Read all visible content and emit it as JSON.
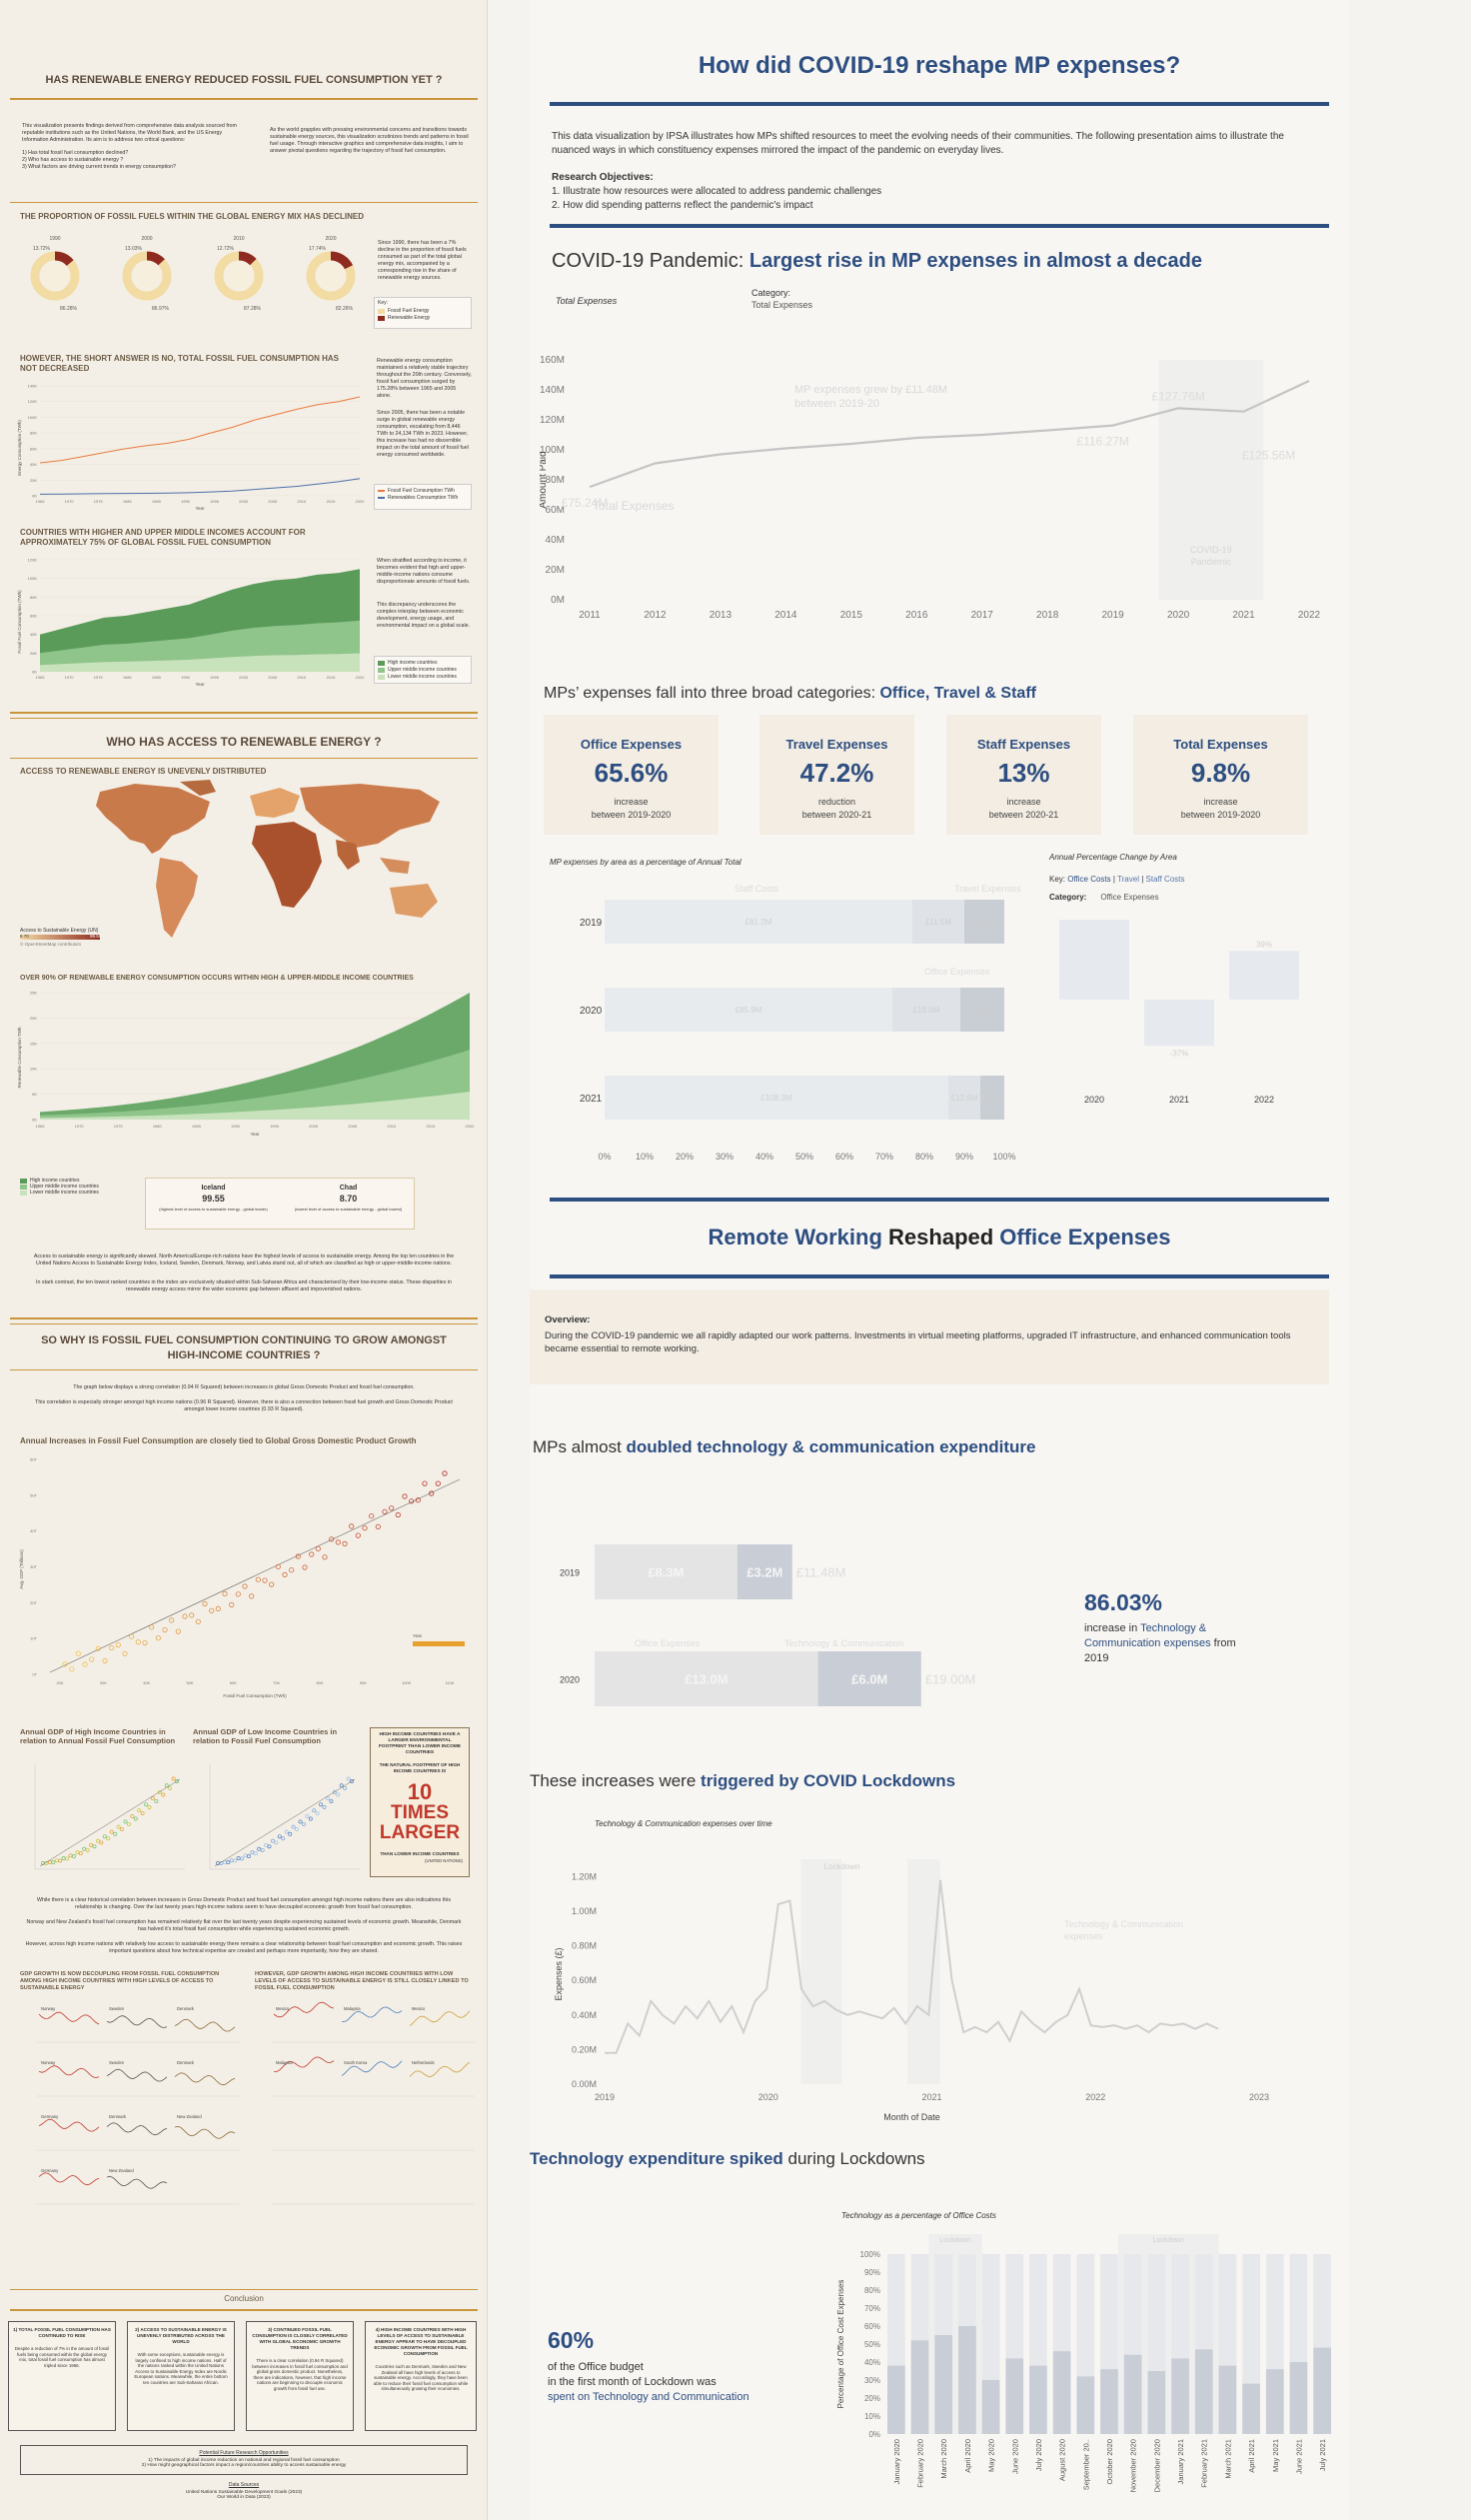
{
  "left": {
    "title1": "HAS RENEWABLE ENERGY REDUCED FOSSIL FUEL CONSUMPTION YET ?",
    "intro_left": "This visualization presents findings derived from comprehensive data analysis sourced from reputable institutions such as the United Nations, the World Bank, and the US Energy Information Administration. Its aim is to address two critical questions:",
    "intro_q1": "1) Has total fossil fuel consumption declined?",
    "intro_q2": "2) Who has access to sustainable energy ?",
    "intro_q3": "3) What factors are driving current trends in energy consumption?",
    "intro_right": "As the world grapples with pressing environmental concerns and transitions towards sustainable energy sources, this visualization scrutinizes trends and patterns in fossil fuel usage. Through interactive graphics and comprehensive data insights, I aim to answer pivotal questions regarding the trajectory of fossil fuel consumption.",
    "sec1": "THE PROPORTION OF FOSSIL FUELS WITHIN THE GLOBAL ENERGY MIX HAS DECLINED",
    "donuts": [
      {
        "year": "1990",
        "fossil": "86.28%",
        "renew": "13.72%",
        "renew_frac": 0.1372
      },
      {
        "year": "2000",
        "fossil": "86.97%",
        "renew": "13.03%",
        "renew_frac": 0.1303
      },
      {
        "year": "2010",
        "fossil": "87.28%",
        "renew": "12.72%",
        "renew_frac": 0.1272
      },
      {
        "year": "2020",
        "fossil": "82.26%",
        "renew": "17.74%",
        "renew_frac": 0.1774
      }
    ],
    "donut_note": "Since 1990, there has been a 7% decline in the proportion of fossil fuels consumed as part of the total global energy mix, accompanied by a corresponding rise in the share of renewable energy sources.",
    "donut_key": "Key:",
    "donut_legend": [
      "Fossil Fuel Energy",
      "Renewable Energy"
    ],
    "sec2": "HOWEVER, THE SHORT ANSWER IS NO, TOTAL FOSSIL FUEL CONSUMPTION HAS NOT DECREASED",
    "line_note1": "Renewable energy consumption maintained a relatively stable trajectory throughout the 20th century. Conversely, fossil fuel consumption surged by 175.28% between 1965 and 2005 alone.",
    "line_note2": "Since 2005, there has been a notable surge in global renewable energy consumption, escalating from 8,446 TWh to 24,134 TWh in 2023. However, this increase has had no discernible impact on the total amount of fossil fuel energy consumed worldwide.",
    "line_legend": [
      "Fossil Fuel Consumption TWh",
      "Renewables Consumption TWh"
    ],
    "line_xlabel": "Year",
    "line_ylabel": "Energy Consumption (TWh)",
    "sec3": "COUNTRIES WITH HIGHER AND UPPER MIDDLE INCOMES ACCOUNT FOR APPROXIMATELY 75% OF GLOBAL FOSSIL FUEL CONSUMPTION",
    "area_note1": "When stratified according to income, it becomes evident that high and upper-middle-income nations consume disproportionate amounts of fossil fuels.",
    "area_note2": "This discrepancy underscores the complex interplay between economic development, energy usage, and environmental impact on a global scale.",
    "area_legend": [
      "High income countries",
      "Upper middle income countries",
      "Lower middle income countries"
    ],
    "area_ylabel": "Fossil Fuel Consumption (TWh)",
    "title2": "WHO HAS ACCESS TO RENEWABLE ENERGY ?",
    "sec4": "ACCESS TO RENEWABLE ENERGY IS UNEVENLY DISTRIBUTED",
    "map_legend": "Access to Sustainable Energy (UN)",
    "map_min": "8.70",
    "map_max": "99.55",
    "map_note": "© OpenStreetMap contributors",
    "sec5": "OVER 90% OF RENEWABLE ENERGY CONSUMPTION OCCURS WITHIN HIGH & UPPER-MIDDLE INCOME COUNTRIES",
    "area2_ylabel": "Renewable Consumption TWh",
    "area2_legend": [
      "High income countries",
      "Upper middle income countries",
      "Lower middle income countries"
    ],
    "iceland": {
      "name": "Iceland",
      "val": "99.55",
      "desc": "(highest level of access to sustainable energy - global leader)"
    },
    "chad": {
      "name": "Chad",
      "val": "8.70",
      "desc": "(lowest level of access to sustainable energy - global lowest)"
    },
    "access_note1": "Access to sustainable energy is significantly skewed. North America/Europe-rich nations have the highest levels of access to sustainable energy. Among the top ten countries in the United Nations Access to Sustainable Energy Index, Iceland, Sweden, Denmark, Norway, and Latvia stand out, all of which are classified as high or upper-middle-income nations.",
    "access_note2": "In stark contrast, the ten lowest ranked countries in the index are exclusively situated within Sub-Saharan Africa and characterised by their low-income status. These disparities in renewable energy access mirror the wider economic gap between affluent and impoverished nations.",
    "title3": "SO WHY IS FOSSIL FUEL CONSUMPTION CONTINUING TO GROW AMONGST HIGH-INCOME COUNTRIES ?",
    "corr_note1": "The graph below displays a strong correlation (0.94 R Squared) between increases in global Gross Domestic Product and fossil fuel consumption.",
    "corr_note2": "This correlation is especially stronger amongst high income nations (0.96 R Squared). However, there is also a connection between fossil fuel growth and Gross Domestic Product amongst lower income countries (0.93 R Squared).",
    "sec6": "Annual Increases in Fossil Fuel Consumption are closely tied to Global Gross Domestic Product Growth",
    "scatter_xlabel": "Fossil Fuel Consumption (TWh)",
    "scatter_ylabel": "Avg. GDP (Trillions)",
    "scatter_legend": "Year",
    "sec7a": "Annual GDP of High Income Countries in relation to Annual Fossil Fuel Consumption",
    "sec7b": "Annual GDP of Low Income Countries in relation to Fossil Fuel Consumption",
    "ft_head": "HIGH INCOME COUNTRIES HAVE A LARGER ENVIRONMENTAL FOOTPRINT THAN LOWER INCOME COUNTRIES",
    "ft_sub": "THE NATURAL FOOTPRINT OF HIGH INCOME COUNTRIES IS",
    "ft_big1": "10",
    "ft_big2": "TIMES",
    "ft_big3": "LARGER",
    "ft_tail": "THAN LOWER INCOME COUNTRIES",
    "ft_src": "(UNITED NATIONS)",
    "mid_note1": "While there is a clear historical correlation between increases in Gross Domestic Product and fossil fuel consumption amongst high income nations there are also indications this relationship is changing. Over the last twenty years high-income nations seem to have decoupled economic growth from fossil fuel consumption.",
    "mid_note2": "Norway and New Zealand's fossil fuel consumption has remained relatively flat over the last twenty years despite experiencing sustained levels of economic growth. Meanwhile, Denmark has halved it's total fossil fuel consumption while experiencing sustained economic growth.",
    "mid_note3": "However, across high income nations with relatively low access to sustainable energy there remains a clear relationship between fossil fuel consumption and economic growth. This raises important questions about how technical expertise are created and perhaps more importantly, how they are shared.",
    "sec8a": "GDP GROWTH IS NOW DECOUPLING FROM FOSSIL FUEL CONSUMPTION AMONG HIGH INCOME COUNTRIES WITH HIGH LEVELS OF ACCESS TO SUSTAINABLE ENERGY",
    "sec8b": "HOWEVER, GDP GROWTH AMONG HIGH INCOME COUNTRIES WITH LOW LEVELS OF ACCESS TO SUSTAINABLE ENERGY IS STILL CLOSELY LINKED TO FOSSIL FUEL CONSUMPTION",
    "small_labels_a": [
      "Norway",
      "Sweden",
      "Denmark",
      "Norway",
      "Sweden",
      "Denmark",
      "Germany",
      "Denmark",
      "New Zealand",
      "Germany",
      "New Zealand"
    ],
    "small_labels_b": [
      "Mexico",
      "Malaysia",
      "Mexico",
      "Malaysia",
      "South Korea",
      "Netherlands"
    ],
    "conclusion": "Conclusion",
    "concl": [
      {
        "head": "1) TOTAL FOSSIL FUEL CONSUMPTION HAS CONTINUED TO RISE",
        "body": "Despite a reduction of 7% in the amount of fossil fuels being consumed within the global energy mix, total fossil fuel consumption has almost tripled since 1965."
      },
      {
        "head": "2) ACCESS TO SUSTAINABLE ENERGY IS UNEVENLY DISTRIBUTED ACROSS THE WORLD",
        "body": "With some exceptions, sustainable energy is largely confined to high income nations. Half of the nations ranked within the United Nations Access to Sustainable Energy Index are Nordic European nations. Meanwhile, the entire bottom ten countries are Sub-Saharan African."
      },
      {
        "head": "3) CONTINUED FOSSIL FUEL CONSUMPTION IS CLOSELY CORRELATED WITH GLOBAL ECONOMIC GROWTH TRENDS",
        "body": "There is a clear correlation (0.94 R Squared) between increases in fossil fuel consumption and global gross domestic product. Nonetheless, there are indications, however, that high income nations are beginning to decouple economic growth from fossil fuel use."
      },
      {
        "head": "4) HIGH INCOME COUNTRIES WITH HIGH LEVELS OF ACCESS TO SUSTAINABLE ENERGY APPEAR TO HAVE DECOUPLED ECONOMIC GROWTH FROM FOSSIL FUEL CONSUMPTION",
        "body": "Countries such as Denmark, Sweden and New Zealand all have high levels of access to sustainable energy. Accordingly, they have been able to reduce their fossil fuel consumption while simultaneously growing their economies."
      }
    ],
    "future_head": "Potential Future Research Opportunities",
    "future_1": "1) The impacts of global income reduction on national and regional fossil fuel consumption",
    "future_2": "2) How might geographical factors impact a region/countries ability to access sustainable energy",
    "sources_head": "Data Sources",
    "sources_1": "United Nations Sustainable Development Goals (2023)",
    "sources_2": "Our World in Data (2023)"
  },
  "right": {
    "title": "How did COVID-19 reshape MP expenses?",
    "intro": "This data visualization by IPSA illustrates how MPs shifted resources to meet the evolving needs of their communities. The following presentation aims to illustrate the nuanced ways in which constituency expenses mirrored the impact of the pandemic on everyday lives.",
    "obj_head": "Research Objectives:",
    "obj1": "1. Illustrate how resources were allocated to address pandemic challenges",
    "obj2": "2. How did spending patterns reflect the pandemic's impact",
    "h1a": "COVID-19 Pandemic: ",
    "h1b": "Largest rise in MP expenses in almost a decade",
    "total_exp_label": "Total Expenses",
    "category_label": "Category:",
    "category_value": "Total Expenses",
    "ann_grew": "MP expenses grew by £11.48M",
    "ann_between": "between 2019-20",
    "ann_total": "Total Expenses",
    "ann_covid1": "COVID-19",
    "ann_covid2": "Pandemic",
    "h2a": "MPs’ expenses fall into three broad categories: ",
    "h2b": "Office, Travel & Staff",
    "kpis": [
      {
        "title": "Office Expenses",
        "value": "65.6%",
        "s1": "increase",
        "s2": "between 2019-2020"
      },
      {
        "title": "Travel Expenses",
        "value": "47.2%",
        "s1": "reduction",
        "s2": "between 2020-21"
      },
      {
        "title": "Staff Expenses",
        "value": "13%",
        "s1": "increase",
        "s2": "between 2020-21"
      },
      {
        "title": "Total Expenses",
        "value": "9.8%",
        "s1": "increase",
        "s2": "between 2019-2020"
      }
    ],
    "stack_title": "MP expenses by area as a percentage of Annual Total",
    "stack_lbl_staff": "Staff Costs",
    "stack_lbl_travel": "Travel Expenses",
    "stack_lbl_office": "Office Expenses",
    "apc_title": "Annual Percentage Change by Area",
    "apc_key": "Key: ",
    "apc_key_office": "Office Costs",
    "apc_key_sep1": " | ",
    "apc_key_travel": "Travel",
    "apc_key_sep2": " | ",
    "apc_key_staff": "Staff Costs",
    "apc_cat_label": "Category:",
    "apc_cat_value": "Office Expenses",
    "h3a": "Remote Working ",
    "h3b": "Reshaped ",
    "h3c": "Office Expenses",
    "overview_head": "Overview:",
    "overview_body": "During the COVID-19 pandemic we all rapidly adapted our work patterns. Investments in virtual meeting platforms, upgraded IT infrastructure, and enhanced communication tools became essential to remote working.",
    "h4a": "MPs almost ",
    "h4b": "doubled technology & communication expenditure",
    "tech_lbl_office": "Office Expenses",
    "tech_lbl_tech": "Technology & Communication",
    "stat1_value": "86.03%",
    "stat1_a": "increase in ",
    "stat1_b": "Technology & Communication",
    "stat1_c": "expenses",
    "stat1_d": " from 2019",
    "h5a": "These increases were ",
    "h5b": "triggered by COVID Lockdowns",
    "tc_title": "Technology & Communication expenses over time",
    "tc_ylabel": "Expenses (£)",
    "tc_xlabel": "Month of Date",
    "tc_lockdown": "Lockdown",
    "tc_series_label1": "Technology & Communication",
    "tc_series_label2": "expenses",
    "h6a": "Technology expenditure spiked",
    "h6b": " during Lockdowns",
    "pct_title": "Technology as a percentage of Office Costs",
    "pct_ylabel": "Percentage of Office Cost Expenses",
    "pct_lockdown": "Lockdown",
    "stat2_value": "60%",
    "stat2_a": "of the Office budget",
    "stat2_b": " in the first month of Lockdown was",
    "stat2_c": "spent on Technology and Communication"
  },
  "chart_data": [
    {
      "type": "line",
      "title": "Total Expenses",
      "ylabel": "Amount Paid",
      "x": [
        2011,
        2012,
        2013,
        2014,
        2015,
        2016,
        2017,
        2018,
        2019,
        2020,
        2021,
        2022
      ],
      "series": [
        {
          "name": "Total Expenses",
          "values": [
            75.24,
            91,
            97,
            101,
            104,
            108,
            110,
            113,
            116.27,
            127.76,
            125.56,
            146
          ]
        }
      ],
      "ylim": [
        0,
        160
      ],
      "yticks": [
        "0M",
        "20M",
        "40M",
        "60M",
        "80M",
        "100M",
        "120M",
        "140M",
        "160M"
      ],
      "data_labels": [
        {
          "x": 2011,
          "label": "£75.24M"
        },
        {
          "x": 2019,
          "label": "£116.27M"
        },
        {
          "x": 2020,
          "label": "£127.76M"
        },
        {
          "x": 2021,
          "label": "£125.56M"
        }
      ],
      "highlight_x": [
        2020,
        2021
      ]
    },
    {
      "type": "bar",
      "title": "MP expenses by area as a percentage of Annual Total",
      "categories": [
        "2019",
        "2020",
        "2021"
      ],
      "series": [
        {
          "name": "Staff Costs",
          "values": [
            77,
            72,
            86
          ],
          "labels": [
            "£81.2M",
            "£85.9M",
            "£108.3M"
          ]
        },
        {
          "name": "Travel Expenses",
          "values": [
            13,
            17,
            8
          ],
          "labels": [
            "£11.5M",
            "£19.0M",
            "£12.6M"
          ]
        },
        {
          "name": "Office Expenses",
          "values": [
            10,
            11,
            6
          ],
          "labels": [
            "£11.9M",
            "£14.9M",
            "£7.3M"
          ]
        }
      ],
      "xticks": [
        "0%",
        "10%",
        "20%",
        "30%",
        "40%",
        "50%",
        "60%",
        "70%",
        "80%",
        "90%",
        "100%"
      ]
    },
    {
      "type": "bar",
      "title": "Annual Percentage Change by Area",
      "categories": [
        "2020",
        "2021",
        "2022"
      ],
      "values": [
        66,
        -37,
        39
      ],
      "labels": [
        "66%",
        "-37%",
        "39%"
      ]
    },
    {
      "type": "bar",
      "categories": [
        "2019",
        "2020"
      ],
      "series": [
        {
          "name": "Office Expenses",
          "values": [
            8.3,
            13.0
          ],
          "labels": [
            "£8.3M",
            "£13.0M"
          ]
        },
        {
          "name": "Technology & Communication",
          "values": [
            3.2,
            6.0
          ],
          "labels": [
            "£3.2M",
            "£6.0M"
          ]
        }
      ],
      "totals": [
        "£11.48M",
        "£19.00M"
      ]
    },
    {
      "type": "line",
      "title": "Technology & Communication expenses over time",
      "ylabel": "Expenses (£)",
      "xlabel": "Month of Date",
      "xticks": [
        "2019",
        "2020",
        "2021",
        "2022",
        "2023"
      ],
      "yticks": [
        "0.00M",
        "0.20M",
        "0.40M",
        "0.60M",
        "0.80M",
        "1.00M",
        "1.20M"
      ],
      "ylim": [
        0,
        1.3
      ],
      "x_start": 2019,
      "x_end": 2023,
      "lockdown_windows": [
        [
          2020.2,
          2020.45
        ],
        [
          2020.85,
          2021.05
        ]
      ],
      "values": [
        0.18,
        0.18,
        0.35,
        0.28,
        0.48,
        0.4,
        0.35,
        0.45,
        0.38,
        0.48,
        0.36,
        0.45,
        0.3,
        0.48,
        0.55,
        1.04,
        1.06,
        0.55,
        0.45,
        0.48,
        0.43,
        0.4,
        0.42,
        0.4,
        0.38,
        0.44,
        0.35,
        0.45,
        0.4,
        1.18,
        0.6,
        0.3,
        0.33,
        0.3,
        0.36,
        0.25,
        0.42,
        0.35,
        0.3,
        0.36,
        0.4,
        0.55,
        0.34,
        0.33,
        0.34,
        0.32,
        0.34,
        0.3,
        0.35,
        0.34,
        0.35,
        0.32,
        0.35,
        0.32
      ]
    },
    {
      "type": "bar",
      "title": "Technology as a percentage of Office Costs",
      "ylabel": "Percentage of Office Cost Expenses",
      "categories": [
        "January 2020",
        "February 2020",
        "March 2020",
        "April 2020",
        "May 2020",
        "June 2020",
        "July 2020",
        "August 2020",
        "September 20..",
        "October 2020",
        "November 2020",
        "December 2020",
        "January 2021",
        "February 2021",
        "March 2021",
        "April 2021",
        "May 2021",
        "June 2021",
        "July 2021"
      ],
      "values": [
        38,
        52,
        55,
        60,
        30,
        42,
        38,
        46,
        32,
        36,
        44,
        35,
        42,
        47,
        38,
        28,
        36,
        40,
        48
      ],
      "yticks": [
        "0%",
        "10%",
        "20%",
        "30%",
        "40%",
        "50%",
        "60%",
        "70%",
        "80%",
        "90%",
        "100%"
      ],
      "lockdown_indices": [
        [
          2,
          3
        ],
        [
          10,
          13
        ]
      ]
    }
  ]
}
